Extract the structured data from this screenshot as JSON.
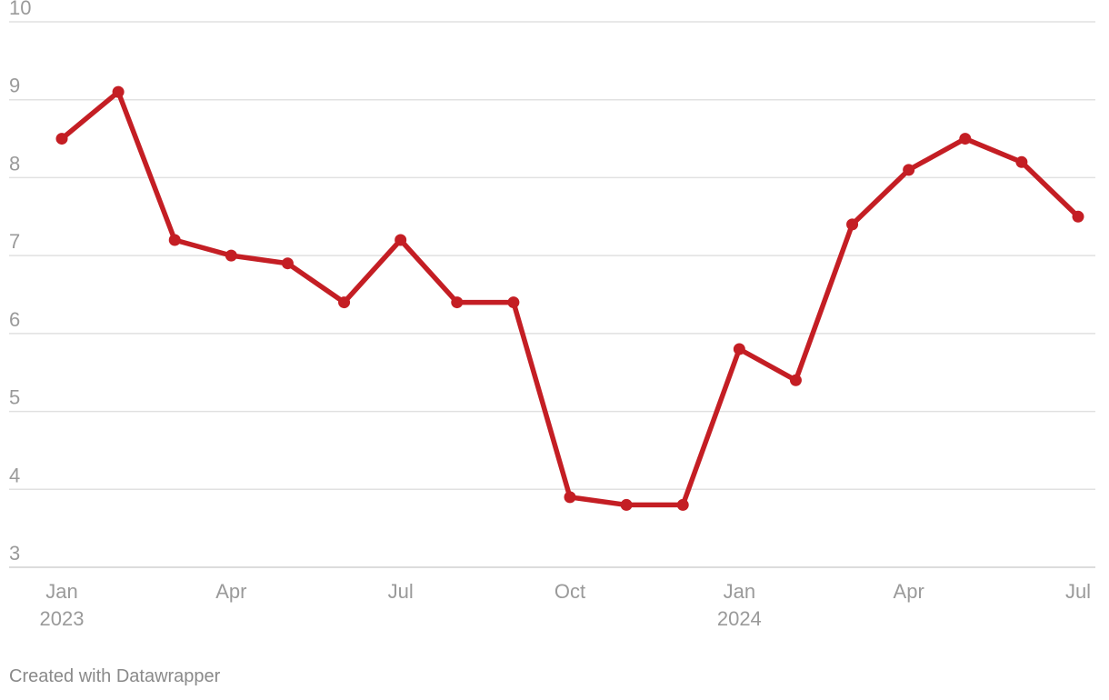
{
  "chart_data": {
    "type": "line",
    "x": [
      "2023-01",
      "2023-02",
      "2023-03",
      "2023-04",
      "2023-05",
      "2023-06",
      "2023-07",
      "2023-08",
      "2023-09",
      "2023-10",
      "2023-11",
      "2023-12",
      "2024-01",
      "2024-02",
      "2024-03",
      "2024-04",
      "2024-05",
      "2024-06",
      "2024-07"
    ],
    "series": [
      {
        "values": [
          8.5,
          9.1,
          7.2,
          7.0,
          6.9,
          6.4,
          7.2,
          6.4,
          6.4,
          3.9,
          3.8,
          3.8,
          5.8,
          5.4,
          7.4,
          8.1,
          8.5,
          8.2,
          7.5
        ]
      }
    ],
    "ylim": [
      3,
      10
    ],
    "yticks": [
      "3",
      "4",
      "5",
      "6",
      "7",
      "8",
      "9",
      "10"
    ],
    "xticks": [
      {
        "index": 0,
        "label": "Jan",
        "sublabel": "2023"
      },
      {
        "index": 3,
        "label": "Apr",
        "sublabel": ""
      },
      {
        "index": 6,
        "label": "Jul",
        "sublabel": ""
      },
      {
        "index": 9,
        "label": "Oct",
        "sublabel": ""
      },
      {
        "index": 12,
        "label": "Jan",
        "sublabel": "2024"
      },
      {
        "index": 15,
        "label": "Apr",
        "sublabel": ""
      },
      {
        "index": 18,
        "label": "Jul",
        "sublabel": ""
      }
    ],
    "grid": true,
    "line_color": "#c41e24"
  },
  "footer": {
    "credit": "Created with Datawrapper"
  }
}
